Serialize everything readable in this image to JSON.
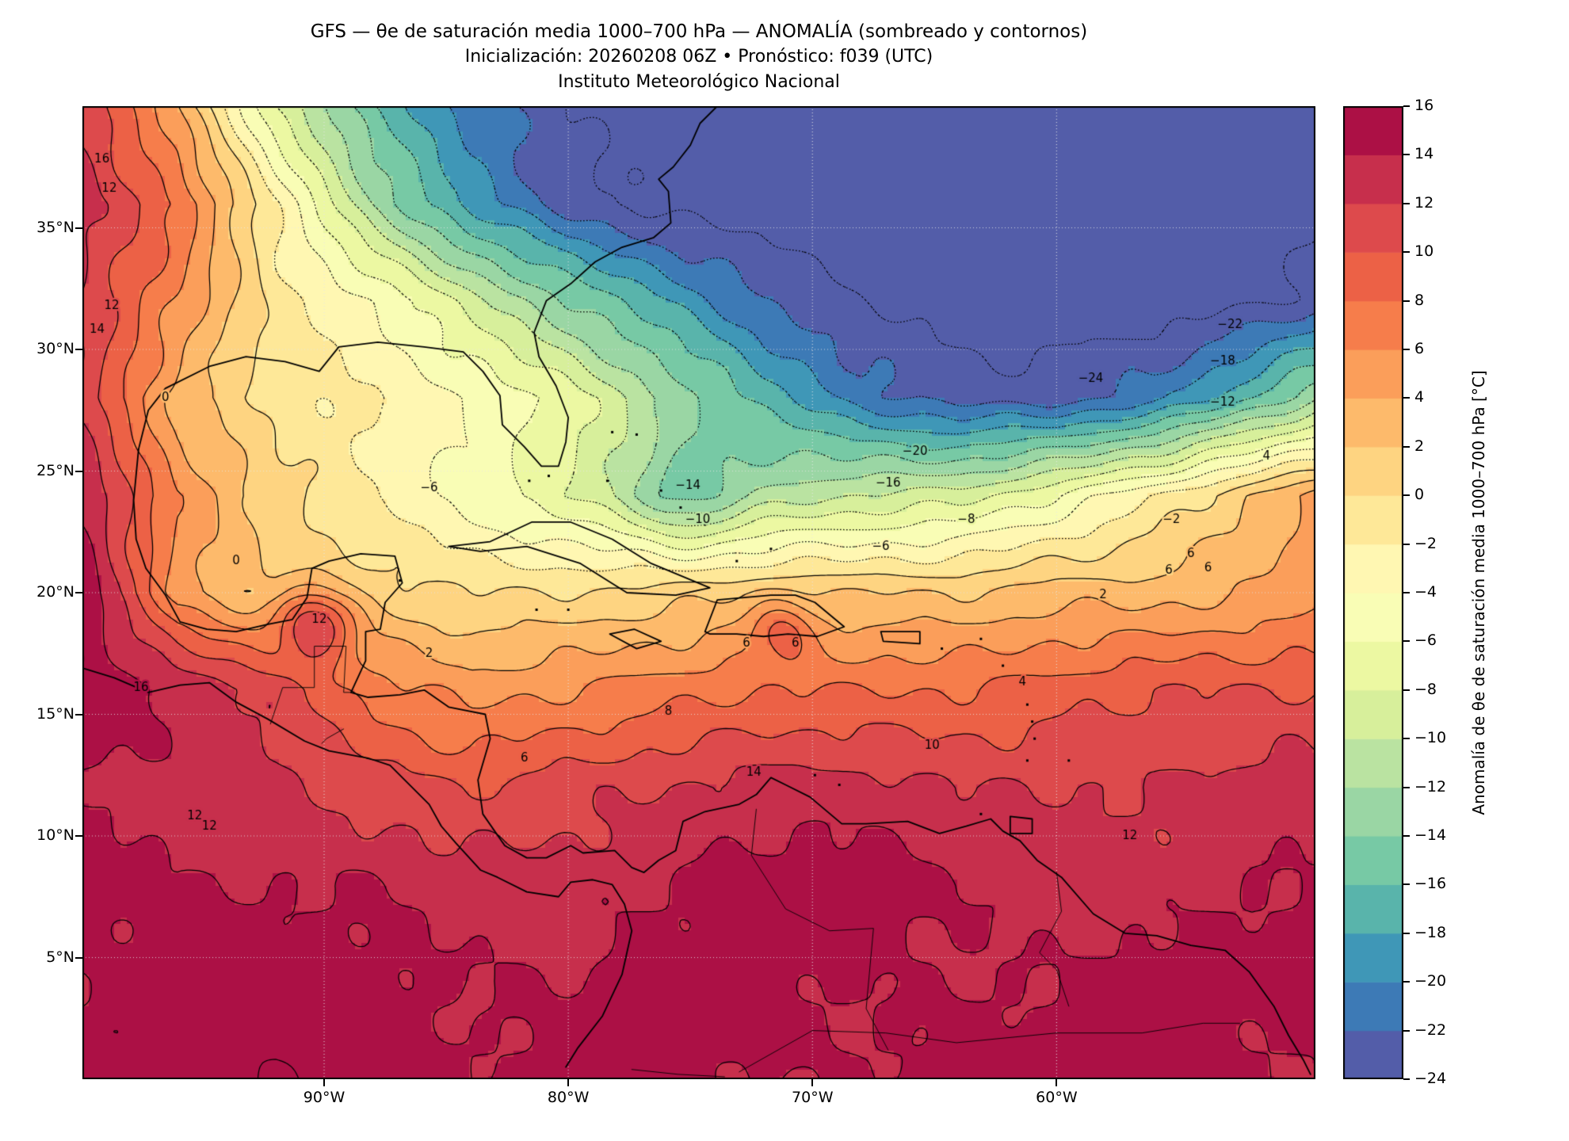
{
  "header": {
    "title_line1": "GFS — θe de saturación media 1000–700 hPa — ANOMALÍA (sombreado y contornos)",
    "title_line2": "Inicialización: 20260208 06Z   •   Pronóstico: f039 (UTC)",
    "title_line3": "Instituto Meteorológico Nacional"
  },
  "axes": {
    "lat_tick_labels": [
      "35°N",
      "30°N",
      "25°N",
      "20°N",
      "15°N",
      "10°N",
      "5°N"
    ],
    "lat_tick_values": [
      35,
      30,
      25,
      20,
      15,
      10,
      5
    ],
    "lon_tick_labels": [
      "90°W",
      "80°W",
      "70°W",
      "60°W"
    ],
    "lon_tick_values": [
      -90,
      -80,
      -70,
      -60
    ],
    "gridlines": true
  },
  "colorbar": {
    "label": "Anomalía de θe de saturación media 1000–700 hPa [°C]",
    "tick_labels": [
      "16",
      "14",
      "12",
      "10",
      "8",
      "6",
      "4",
      "2",
      "0",
      "−2",
      "−4",
      "−6",
      "−8",
      "−10",
      "−12",
      "−14",
      "−16",
      "−18",
      "−20",
      "−22",
      "−24"
    ],
    "tick_values": [
      16,
      14,
      12,
      10,
      8,
      6,
      4,
      2,
      0,
      -2,
      -4,
      -6,
      -8,
      -10,
      -12,
      -14,
      -16,
      -18,
      -20,
      -22,
      -24
    ],
    "vmin": -24,
    "vmax": 16,
    "step": 2,
    "colormap": "Spectral_r",
    "colormap_anchors": [
      "#9e0142",
      "#d53e4f",
      "#f46d43",
      "#fdae61",
      "#fee08b",
      "#ffffbf",
      "#e6f598",
      "#abdda4",
      "#66c2a5",
      "#3288bd",
      "#5e4fa2"
    ]
  },
  "chart_data": {
    "type": "heatmap",
    "subtype": "filled_contour_map",
    "title": "GFS — θe de saturación media 1000–700 hPa — ANOMALÍA (sombreado y contornos)",
    "units": "°C",
    "lon_range": [
      -99.9,
      -49.4
    ],
    "lat_range": [
      0,
      40
    ],
    "contour_interval": 2,
    "contour_style": {
      "negative": "dotted",
      "positive_and_zero": "solid"
    },
    "grid_lons": [
      -100,
      -96,
      -92,
      -88,
      -84,
      -80,
      -76,
      -72,
      -68,
      -64,
      -60,
      -56,
      -52,
      -49
    ],
    "grid_lats": [
      40,
      36,
      32,
      28,
      24,
      20,
      16,
      12,
      8,
      4,
      0
    ],
    "anomaly_grid": [
      [
        12,
        4,
        -8,
        -16,
        -21,
        -24,
        -25.5,
        -25.5,
        -25.5,
        -25.5,
        -25.5,
        -25.5,
        -25.5,
        -25.5
      ],
      [
        13,
        8,
        -2,
        -12,
        -19,
        -23,
        -25,
        -25.5,
        -25.5,
        -25.5,
        -25.5,
        -25.5,
        -25,
        -25
      ],
      [
        12,
        6,
        -1,
        -4,
        -9,
        -14,
        -18,
        -22,
        -24,
        -25,
        -25.5,
        -25.5,
        -24.5,
        -23
      ],
      [
        12,
        3,
        -1,
        -2,
        -4,
        -7,
        -12,
        -17,
        -21,
        -23,
        -23,
        -21,
        -16,
        -12
      ],
      [
        14,
        6,
        1,
        -2,
        -5,
        -8,
        -11,
        -11,
        -10,
        -9,
        -6,
        -2,
        2,
        5
      ],
      [
        16,
        5,
        1,
        1,
        0,
        0,
        1,
        2,
        2,
        2,
        3,
        3,
        4,
        5
      ],
      [
        16,
        14,
        11,
        7,
        5,
        6,
        7,
        8,
        8,
        8,
        9,
        10,
        10,
        10
      ],
      [
        14,
        13,
        13,
        11,
        10,
        11,
        12,
        13,
        13,
        12,
        12,
        12,
        13,
        13
      ],
      [
        15,
        14,
        14,
        14,
        13,
        13,
        14,
        15,
        15,
        14,
        13,
        13,
        14,
        14
      ],
      [
        14,
        15,
        15,
        15,
        14,
        14,
        15,
        15,
        14,
        14,
        14,
        15,
        15,
        15
      ],
      [
        15,
        15,
        16,
        15,
        14,
        15,
        15,
        14,
        14,
        15,
        15,
        15,
        14,
        14
      ]
    ],
    "local_features": [
      {
        "lon": -90.4,
        "lat": 18.8,
        "amp": 8,
        "r": 1.1
      },
      {
        "lon": -71.2,
        "lat": 18.5,
        "amp": 4.5,
        "r": 0.85
      },
      {
        "lon": -75.0,
        "lat": 24.2,
        "amp": -4,
        "r": 1.6
      }
    ],
    "contour_labels": [
      {
        "t": "16",
        "lon": -99.1,
        "lat": 37.8
      },
      {
        "t": "12",
        "lon": -98.8,
        "lat": 36.6
      },
      {
        "t": "12",
        "lon": -98.7,
        "lat": 31.8
      },
      {
        "t": "14",
        "lon": -99.3,
        "lat": 30.8
      },
      {
        "t": "0",
        "lon": -96.5,
        "lat": 28.0
      },
      {
        "t": "0",
        "lon": -93.6,
        "lat": 21.3
      },
      {
        "t": "−6",
        "lon": -85.7,
        "lat": 24.3
      },
      {
        "t": "−14",
        "lon": -75.1,
        "lat": 24.4
      },
      {
        "t": "−10",
        "lon": -74.7,
        "lat": 23.0
      },
      {
        "t": "−16",
        "lon": -66.9,
        "lat": 24.5
      },
      {
        "t": "−20",
        "lon": -65.8,
        "lat": 25.8
      },
      {
        "t": "−24",
        "lon": -58.6,
        "lat": 28.8
      },
      {
        "t": "−22",
        "lon": -52.9,
        "lat": 31.0
      },
      {
        "t": "−18",
        "lon": -53.2,
        "lat": 29.5
      },
      {
        "t": "−12",
        "lon": -53.2,
        "lat": 27.8
      },
      {
        "t": "−8",
        "lon": -63.7,
        "lat": 23.0
      },
      {
        "t": "−6",
        "lon": -67.2,
        "lat": 21.9
      },
      {
        "t": "−2",
        "lon": -55.3,
        "lat": 23.0
      },
      {
        "t": "4",
        "lon": -51.4,
        "lat": 25.6
      },
      {
        "t": "2",
        "lon": -58.1,
        "lat": 19.9
      },
      {
        "t": "6",
        "lon": -54.5,
        "lat": 21.6
      },
      {
        "t": "6",
        "lon": -55.4,
        "lat": 20.9
      },
      {
        "t": "6",
        "lon": -53.8,
        "lat": 21.0
      },
      {
        "t": "12",
        "lon": -90.2,
        "lat": 18.9
      },
      {
        "t": "2",
        "lon": -85.7,
        "lat": 17.5
      },
      {
        "t": "6",
        "lon": -72.7,
        "lat": 17.9
      },
      {
        "t": "6",
        "lon": -70.7,
        "lat": 17.9
      },
      {
        "t": "16",
        "lon": -97.5,
        "lat": 16.1
      },
      {
        "t": "8",
        "lon": -75.9,
        "lat": 15.1
      },
      {
        "t": "6",
        "lon": -81.8,
        "lat": 13.2
      },
      {
        "t": "10",
        "lon": -65.1,
        "lat": 13.7
      },
      {
        "t": "14",
        "lon": -72.4,
        "lat": 12.6
      },
      {
        "t": "12",
        "lon": -95.3,
        "lat": 10.8
      },
      {
        "t": "12",
        "lon": -94.7,
        "lat": 10.4
      },
      {
        "t": "12",
        "lon": -57.0,
        "lat": 10.0
      },
      {
        "t": "4",
        "lon": -61.4,
        "lat": 16.3
      }
    ],
    "coastlines": [
      [
        [
          -97.6,
          25.9
        ],
        [
          -97.2,
          27.5
        ],
        [
          -96.5,
          28.4
        ],
        [
          -94.7,
          29.3
        ],
        [
          -93.2,
          29.7
        ],
        [
          -91.6,
          29.5
        ],
        [
          -90.2,
          29.1
        ],
        [
          -89.4,
          30.1
        ],
        [
          -87.8,
          30.3
        ],
        [
          -85.9,
          30.1
        ],
        [
          -84.3,
          29.9
        ],
        [
          -83.5,
          29.1
        ],
        [
          -82.8,
          28.1
        ],
        [
          -82.7,
          26.9
        ],
        [
          -81.8,
          26.0
        ],
        [
          -81.1,
          25.2
        ],
        [
          -80.4,
          25.2
        ],
        [
          -80.1,
          26.2
        ],
        [
          -80.0,
          27.2
        ],
        [
          -80.5,
          28.5
        ],
        [
          -81.2,
          29.7
        ],
        [
          -81.4,
          30.7
        ],
        [
          -80.9,
          32.0
        ],
        [
          -79.9,
          32.7
        ],
        [
          -78.9,
          33.6
        ],
        [
          -77.8,
          34.2
        ],
        [
          -76.5,
          34.6
        ],
        [
          -75.8,
          35.2
        ],
        [
          -75.9,
          36.5
        ],
        [
          -76.3,
          37.0
        ],
        [
          -75.7,
          37.5
        ],
        [
          -75.0,
          38.4
        ],
        [
          -74.6,
          39.3
        ],
        [
          -73.9,
          40.0
        ]
      ],
      [
        [
          -97.6,
          25.9
        ],
        [
          -97.8,
          23.8
        ],
        [
          -97.7,
          22.2
        ],
        [
          -97.3,
          21.0
        ],
        [
          -96.5,
          19.9
        ],
        [
          -95.9,
          18.8
        ],
        [
          -94.8,
          18.5
        ],
        [
          -93.6,
          18.4
        ],
        [
          -92.3,
          18.7
        ],
        [
          -91.3,
          18.9
        ],
        [
          -90.7,
          19.8
        ],
        [
          -90.5,
          21.0
        ],
        [
          -89.8,
          21.3
        ],
        [
          -88.5,
          21.6
        ],
        [
          -87.1,
          21.5
        ],
        [
          -86.8,
          20.4
        ],
        [
          -87.5,
          19.6
        ],
        [
          -87.7,
          18.5
        ],
        [
          -88.3,
          18.4
        ],
        [
          -88.3,
          17.2
        ],
        [
          -88.9,
          15.9
        ],
        [
          -88.2,
          15.7
        ],
        [
          -86.9,
          15.8
        ],
        [
          -85.9,
          16.0
        ],
        [
          -84.9,
          15.3
        ],
        [
          -83.4,
          15.0
        ],
        [
          -83.2,
          14.0
        ],
        [
          -83.7,
          12.3
        ],
        [
          -83.5,
          10.9
        ],
        [
          -82.6,
          9.6
        ],
        [
          -81.7,
          9.1
        ],
        [
          -80.9,
          9.1
        ],
        [
          -79.9,
          9.6
        ],
        [
          -79.4,
          9.3
        ],
        [
          -78.1,
          9.4
        ],
        [
          -77.4,
          8.7
        ],
        [
          -76.9,
          8.5
        ],
        [
          -76.3,
          9.0
        ],
        [
          -75.6,
          9.4
        ],
        [
          -75.3,
          10.6
        ],
        [
          -74.4,
          11.0
        ],
        [
          -73.0,
          11.3
        ],
        [
          -72.3,
          11.7
        ],
        [
          -71.7,
          12.4
        ],
        [
          -71.1,
          12.1
        ],
        [
          -70.1,
          11.6
        ],
        [
          -68.8,
          10.5
        ],
        [
          -67.8,
          10.5
        ],
        [
          -66.1,
          10.6
        ],
        [
          -64.8,
          10.1
        ],
        [
          -63.7,
          10.4
        ],
        [
          -62.7,
          10.7
        ],
        [
          -62.2,
          10.2
        ],
        [
          -61.5,
          9.8
        ],
        [
          -60.8,
          9.0
        ],
        [
          -59.8,
          8.3
        ],
        [
          -58.5,
          6.8
        ],
        [
          -57.2,
          6.0
        ],
        [
          -55.9,
          5.9
        ],
        [
          -54.5,
          5.5
        ],
        [
          -53.1,
          5.3
        ],
        [
          -52.1,
          4.4
        ],
        [
          -51.1,
          3.0
        ],
        [
          -50.5,
          1.8
        ],
        [
          -49.9,
          0.8
        ],
        [
          -49.6,
          0.2
        ]
      ],
      [
        [
          -99.9,
          16.9
        ],
        [
          -98.6,
          16.5
        ],
        [
          -97.2,
          15.9
        ],
        [
          -95.9,
          16.2
        ],
        [
          -94.7,
          16.3
        ],
        [
          -93.6,
          15.5
        ],
        [
          -92.3,
          14.8
        ],
        [
          -90.8,
          13.9
        ],
        [
          -89.8,
          13.5
        ],
        [
          -88.2,
          13.2
        ],
        [
          -87.3,
          12.9
        ],
        [
          -86.7,
          12.3
        ],
        [
          -85.7,
          11.3
        ],
        [
          -85.2,
          10.4
        ],
        [
          -84.6,
          9.7
        ],
        [
          -83.6,
          8.6
        ],
        [
          -82.9,
          8.3
        ],
        [
          -81.7,
          7.7
        ],
        [
          -80.4,
          7.5
        ],
        [
          -79.9,
          8.1
        ],
        [
          -79.0,
          8.2
        ],
        [
          -78.2,
          8.0
        ],
        [
          -77.7,
          7.2
        ],
        [
          -77.4,
          6.1
        ],
        [
          -77.8,
          4.3
        ],
        [
          -78.6,
          2.6
        ],
        [
          -79.6,
          1.3
        ],
        [
          -80.1,
          0.5
        ]
      ],
      [
        [
          -84.9,
          21.9
        ],
        [
          -83.2,
          22.1
        ],
        [
          -81.5,
          22.9
        ],
        [
          -79.9,
          22.9
        ],
        [
          -78.2,
          22.2
        ],
        [
          -76.6,
          21.2
        ],
        [
          -74.2,
          20.2
        ],
        [
          -75.6,
          19.9
        ],
        [
          -77.6,
          20.0
        ],
        [
          -79.5,
          21.2
        ],
        [
          -81.7,
          21.9
        ],
        [
          -83.6,
          21.7
        ],
        [
          -84.9,
          21.9
        ]
      ],
      [
        [
          -74.4,
          18.4
        ],
        [
          -73.9,
          19.7
        ],
        [
          -72.8,
          19.8
        ],
        [
          -71.7,
          19.9
        ],
        [
          -70.7,
          19.9
        ],
        [
          -69.9,
          19.6
        ],
        [
          -68.7,
          18.6
        ],
        [
          -69.8,
          18.2
        ],
        [
          -71.0,
          18.3
        ],
        [
          -72.0,
          18.2
        ],
        [
          -73.1,
          18.3
        ],
        [
          -74.2,
          18.3
        ],
        [
          -74.4,
          18.4
        ]
      ],
      [
        [
          -78.3,
          18.3
        ],
        [
          -77.3,
          18.5
        ],
        [
          -76.2,
          18.0
        ],
        [
          -77.2,
          17.7
        ],
        [
          -78.3,
          18.3
        ]
      ],
      [
        [
          -67.2,
          18.4
        ],
        [
          -65.6,
          18.4
        ],
        [
          -65.6,
          17.9
        ],
        [
          -67.1,
          18.0
        ],
        [
          -67.2,
          18.4
        ]
      ],
      [
        [
          -61.9,
          10.8
        ],
        [
          -61.0,
          10.7
        ],
        [
          -61.0,
          10.1
        ],
        [
          -61.9,
          10.1
        ],
        [
          -61.9,
          10.8
        ]
      ]
    ],
    "borders": [
      [
        [
          -92.2,
          14.6
        ],
        [
          -91.7,
          16.1
        ],
        [
          -90.4,
          16.1
        ],
        [
          -90.4,
          17.8
        ],
        [
          -89.1,
          17.8
        ],
        [
          -89.2,
          15.9
        ],
        [
          -88.9,
          15.9
        ]
      ],
      [
        [
          -89.2,
          14.4
        ],
        [
          -89.9,
          14.0
        ],
        [
          -90.1,
          13.8
        ]
      ],
      [
        [
          -72.3,
          11.1
        ],
        [
          -72.5,
          9.2
        ],
        [
          -71.1,
          7.0
        ],
        [
          -69.3,
          6.1
        ],
        [
          -67.5,
          6.2
        ],
        [
          -67.8,
          2.9
        ],
        [
          -66.9,
          1.2
        ]
      ],
      [
        [
          -60.0,
          8.5
        ],
        [
          -59.8,
          6.9
        ],
        [
          -60.7,
          5.2
        ],
        [
          -60.0,
          4.5
        ],
        [
          -59.5,
          3.0
        ]
      ],
      [
        [
          -73.0,
          0.3
        ],
        [
          -70.0,
          2.0
        ],
        [
          -67.0,
          1.9
        ],
        [
          -64.1,
          1.5
        ],
        [
          -60.0,
          1.9
        ],
        [
          -56.5,
          1.9
        ],
        [
          -54.0,
          2.3
        ],
        [
          -52.5,
          2.3
        ]
      ],
      [
        [
          -77.4,
          0.4
        ],
        [
          -75.5,
          0.2
        ],
        [
          -73.6,
          0.1
        ]
      ]
    ],
    "islands": [
      [
        -78.2,
        26.6
      ],
      [
        -77.2,
        26.5
      ],
      [
        -78.4,
        24.6
      ],
      [
        -76.2,
        24.2
      ],
      [
        -75.4,
        23.5
      ],
      [
        -74.4,
        22.8
      ],
      [
        -73.1,
        21.3
      ],
      [
        -71.7,
        21.8
      ],
      [
        -81.3,
        19.3
      ],
      [
        -80.0,
        19.3
      ],
      [
        -63.1,
        18.1
      ],
      [
        -62.2,
        17.0
      ],
      [
        -61.4,
        16.2
      ],
      [
        -61.2,
        15.4
      ],
      [
        -61.0,
        14.7
      ],
      [
        -60.9,
        14.0
      ],
      [
        -61.2,
        13.1
      ],
      [
        -59.5,
        13.1
      ],
      [
        -64.7,
        17.7
      ],
      [
        -63.1,
        10.9
      ],
      [
        -69.9,
        12.5
      ],
      [
        -68.9,
        12.1
      ],
      [
        -81.6,
        24.6
      ],
      [
        -80.8,
        24.8
      ],
      [
        -86.9,
        20.5
      ]
    ]
  }
}
